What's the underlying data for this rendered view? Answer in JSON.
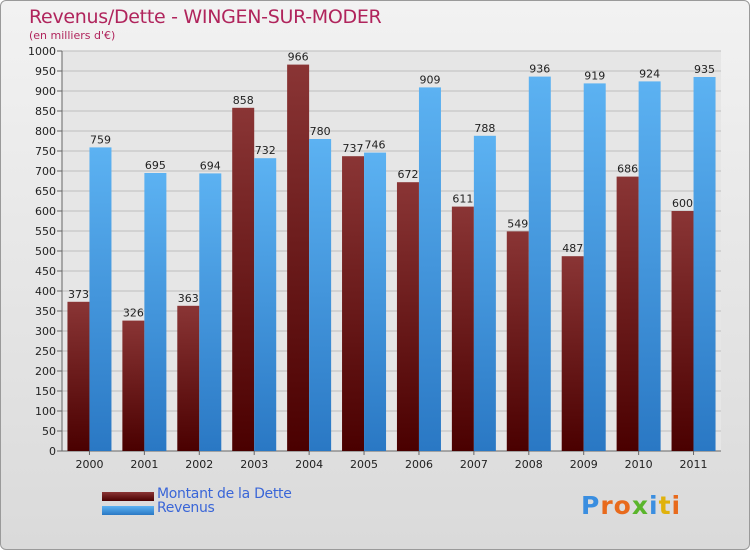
{
  "chart_data": {
    "type": "bar",
    "title": "Revenus/Dette - WINGEN-SUR-MODER",
    "subtitle": "(en milliers d'€)",
    "categories": [
      "2000",
      "2001",
      "2002",
      "2003",
      "2004",
      "2005",
      "2006",
      "2007",
      "2008",
      "2009",
      "2010",
      "2011"
    ],
    "series": [
      {
        "name": "Montant de la Dette",
        "color": "#7a1e1e",
        "values": [
          373,
          326,
          363,
          858,
          966,
          737,
          672,
          611,
          549,
          487,
          686,
          600
        ]
      },
      {
        "name": "Revenus",
        "color": "#4da3e8",
        "values": [
          759,
          695,
          694,
          732,
          780,
          746,
          909,
          788,
          936,
          919,
          924,
          935
        ]
      }
    ],
    "ylim": [
      0,
      1000
    ],
    "ytick_step": 50,
    "grid": true,
    "legend_position": "bottom-left"
  },
  "logo": {
    "text": "Proxiti",
    "colors": [
      "#3a8ee0",
      "#e86a1c",
      "#e86a1c",
      "#5ab52b",
      "#3a8ee0",
      "#e0b20c",
      "#e86a1c"
    ]
  }
}
